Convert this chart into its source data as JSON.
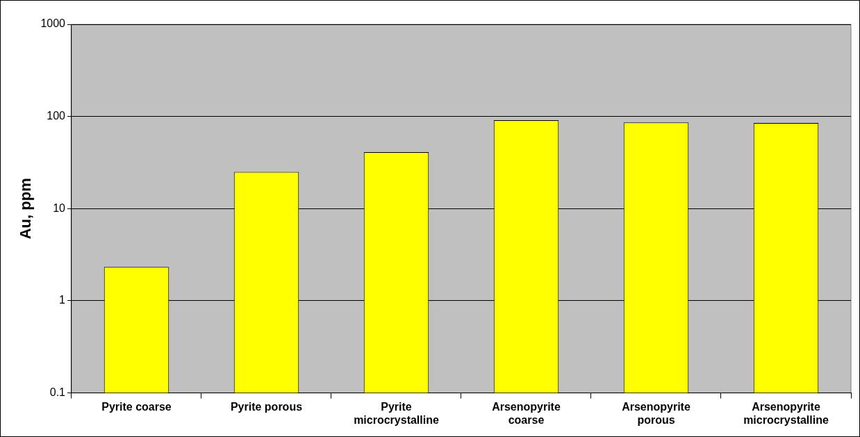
{
  "chart_data": {
    "type": "bar",
    "ylabel": "Au, ppm",
    "categories": [
      "Pyrite coarse",
      "Pyrite porous",
      "Pyrite microcrystalline",
      "Arsenopyrite coarse",
      "Arsenopyrite porous",
      "Arsenopyrite microcrystalline"
    ],
    "values": [
      2.33,
      25,
      41,
      91,
      86,
      85
    ],
    "color": "#ffff00",
    "log": true,
    "ylim": [
      0.1,
      1000
    ],
    "yticks": [
      0.1,
      1,
      10,
      100,
      1000
    ],
    "grid": "y",
    "legend": false
  }
}
